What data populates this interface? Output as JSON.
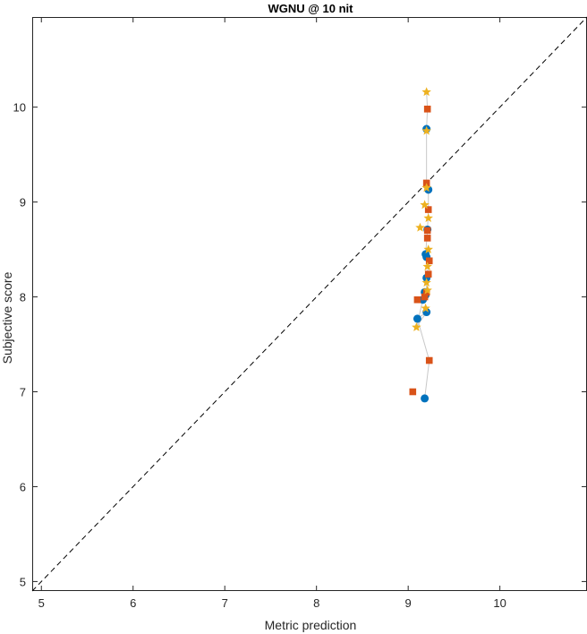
{
  "chart_data": {
    "type": "scatter",
    "title": "WGNU @ 10 nit",
    "xlabel": "Metric prediction",
    "ylabel": "Subjective score",
    "xlim": [
      4.9,
      10.95
    ],
    "ylim": [
      4.9,
      10.95
    ],
    "xticks": [
      5,
      6,
      7,
      8,
      9,
      10
    ],
    "yticks": [
      5,
      6,
      7,
      8,
      9,
      10
    ],
    "grid": false,
    "reference_line": {
      "style": "dashed",
      "color": "#000000",
      "from": [
        4.9,
        4.9
      ],
      "to": [
        10.95,
        10.95
      ]
    },
    "series": [
      {
        "marker": "circle",
        "color": "#0072BD",
        "points": [
          [
            9.1,
            7.77
          ],
          [
            9.2,
            9.77
          ],
          [
            9.19,
            8.45
          ],
          [
            9.2,
            8.42
          ],
          [
            9.22,
            9.13
          ],
          [
            9.18,
            8.05
          ],
          [
            9.19,
            8.02
          ],
          [
            9.2,
            8.2
          ],
          [
            9.16,
            7.97
          ],
          [
            9.2,
            7.84
          ],
          [
            9.21,
            8.71
          ],
          [
            9.18,
            6.93
          ]
        ]
      },
      {
        "marker": "square",
        "color": "#D95319",
        "points": [
          [
            9.05,
            7.0
          ],
          [
            9.21,
            9.98
          ],
          [
            9.2,
            9.2
          ],
          [
            9.22,
            8.92
          ],
          [
            9.21,
            8.7
          ],
          [
            9.23,
            8.38
          ],
          [
            9.22,
            8.24
          ],
          [
            9.2,
            8.05
          ],
          [
            9.18,
            8.0
          ],
          [
            9.1,
            7.97
          ],
          [
            9.23,
            7.33
          ],
          [
            9.21,
            8.62
          ]
        ]
      },
      {
        "marker": "star",
        "color": "#EDB120",
        "points": [
          [
            9.2,
            10.16
          ],
          [
            9.2,
            9.75
          ],
          [
            9.2,
            9.15
          ],
          [
            9.18,
            8.97
          ],
          [
            9.22,
            8.83
          ],
          [
            9.13,
            8.73
          ],
          [
            9.21,
            8.32
          ],
          [
            9.2,
            8.15
          ],
          [
            9.21,
            8.07
          ],
          [
            9.09,
            7.68
          ],
          [
            9.19,
            7.88
          ],
          [
            9.22,
            8.5
          ]
        ]
      }
    ],
    "connector_path": [
      [
        9.18,
        6.93
      ],
      [
        9.23,
        7.33
      ],
      [
        9.1,
        7.77
      ],
      [
        9.2,
        7.84
      ],
      [
        9.09,
        7.68
      ],
      [
        9.16,
        7.97
      ],
      [
        9.1,
        7.97
      ],
      [
        9.18,
        8.0
      ],
      [
        9.2,
        8.05
      ],
      [
        9.2,
        8.2
      ],
      [
        9.23,
        8.38
      ],
      [
        9.19,
        8.45
      ],
      [
        9.21,
        8.7
      ],
      [
        9.22,
        8.92
      ],
      [
        9.22,
        9.13
      ],
      [
        9.2,
        9.2
      ],
      [
        9.2,
        9.77
      ],
      [
        9.21,
        9.98
      ],
      [
        9.2,
        10.16
      ]
    ],
    "connector_color": "#C8C8C8",
    "colors": {
      "axis": "#262626",
      "series": [
        "#0072BD",
        "#D95319",
        "#EDB120"
      ]
    }
  }
}
